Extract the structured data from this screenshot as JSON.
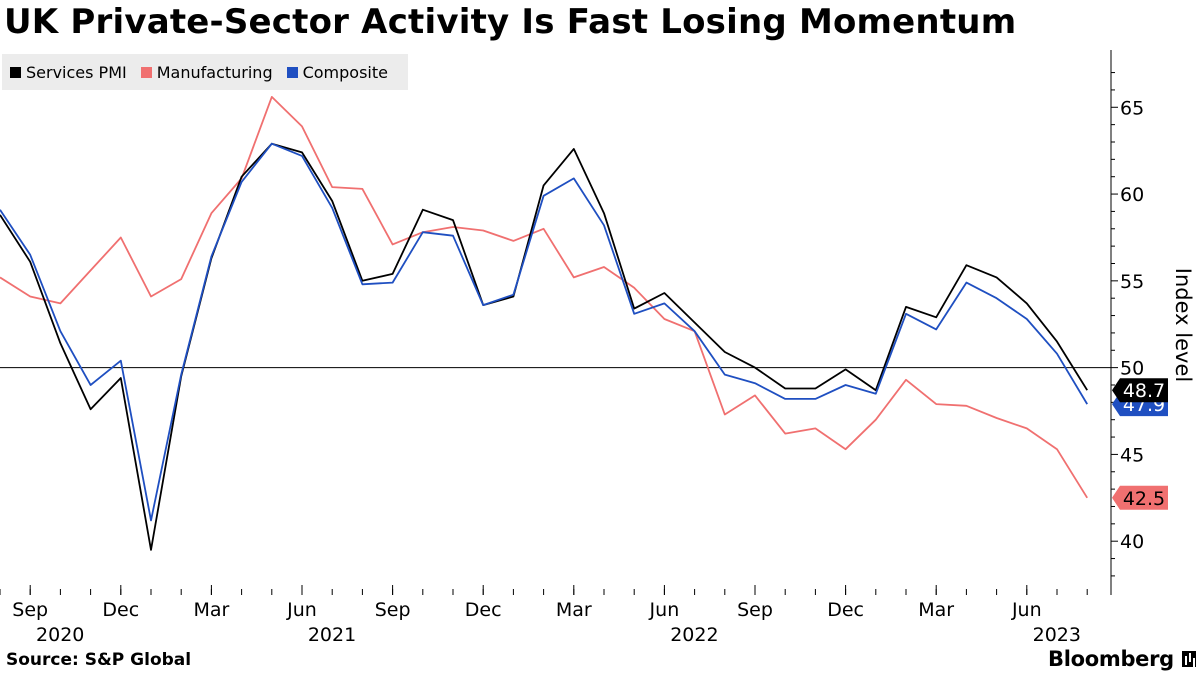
{
  "header": {
    "title": "UK Private-Sector Activity Is Fast Losing Momentum"
  },
  "footer": {
    "source": "Source: S&P Global",
    "brand": "Bloomberg"
  },
  "chart_data": {
    "type": "line",
    "title": "UK Private-Sector Activity Is Fast Losing Momentum",
    "ylabel": "Index level",
    "xlabel": "",
    "ylim": [
      36.9,
      68.3
    ],
    "yticks": [
      40,
      45,
      50,
      55,
      60,
      65
    ],
    "reference_line": 50,
    "grid": false,
    "legend_position": "top-left",
    "x": [
      "2020-08",
      "2020-09",
      "2020-10",
      "2020-11",
      "2020-12",
      "2021-01",
      "2021-02",
      "2021-03",
      "2021-04",
      "2021-05",
      "2021-06",
      "2021-07",
      "2021-08",
      "2021-09",
      "2021-10",
      "2021-11",
      "2021-12",
      "2022-01",
      "2022-02",
      "2022-03",
      "2022-04",
      "2022-05",
      "2022-06",
      "2022-07",
      "2022-08",
      "2022-09",
      "2022-10",
      "2022-11",
      "2022-12",
      "2023-01",
      "2023-02",
      "2023-03",
      "2023-04",
      "2023-05",
      "2023-06",
      "2023-07",
      "2023-08"
    ],
    "x_tick_labels": [
      {
        "x": "2020-09",
        "month": "Sep",
        "year": "2020"
      },
      {
        "x": "2020-12",
        "month": "Dec",
        "year": ""
      },
      {
        "x": "2021-03",
        "month": "Mar",
        "year": ""
      },
      {
        "x": "2021-06",
        "month": "Jun",
        "year": "2021"
      },
      {
        "x": "2021-09",
        "month": "Sep",
        "year": ""
      },
      {
        "x": "2021-12",
        "month": "Dec",
        "year": ""
      },
      {
        "x": "2022-03",
        "month": "Mar",
        "year": ""
      },
      {
        "x": "2022-06",
        "month": "Jun",
        "year": "2022"
      },
      {
        "x": "2022-09",
        "month": "Sep",
        "year": ""
      },
      {
        "x": "2022-12",
        "month": "Dec",
        "year": ""
      },
      {
        "x": "2023-03",
        "month": "Mar",
        "year": ""
      },
      {
        "x": "2023-06",
        "month": "Jun",
        "year": "2023"
      }
    ],
    "series": [
      {
        "name": "Manufacturing",
        "color": "#f07070",
        "end_label": "42.5",
        "values": [
          55.2,
          54.1,
          53.7,
          55.6,
          57.5,
          54.1,
          55.1,
          58.9,
          60.9,
          65.6,
          63.9,
          60.4,
          60.3,
          57.1,
          57.8,
          58.1,
          57.9,
          57.3,
          58.0,
          55.2,
          55.8,
          54.6,
          52.8,
          52.1,
          47.3,
          48.4,
          46.2,
          46.5,
          45.3,
          47.0,
          49.3,
          47.9,
          47.8,
          47.1,
          46.5,
          45.3,
          42.5
        ]
      },
      {
        "name": "Services PMI",
        "color": "#000000",
        "end_label": "48.7",
        "values": [
          58.8,
          56.1,
          51.4,
          47.6,
          49.4,
          39.5,
          49.5,
          56.3,
          61.0,
          62.9,
          62.4,
          59.6,
          55.0,
          55.4,
          59.1,
          58.5,
          53.6,
          54.1,
          60.5,
          62.6,
          58.9,
          53.4,
          54.3,
          52.6,
          50.9,
          50.0,
          48.8,
          48.8,
          49.9,
          48.7,
          53.5,
          52.9,
          55.9,
          55.2,
          53.7,
          51.5,
          48.7
        ]
      },
      {
        "name": "Composite",
        "color": "#1f4fc1",
        "end_label": "47.9",
        "values": [
          59.1,
          56.5,
          52.1,
          49.0,
          50.4,
          41.2,
          49.6,
          56.4,
          60.7,
          62.9,
          62.2,
          59.2,
          54.8,
          54.9,
          57.8,
          57.6,
          53.6,
          54.2,
          59.9,
          60.9,
          58.2,
          53.1,
          53.7,
          52.1,
          49.6,
          49.1,
          48.2,
          48.2,
          49.0,
          48.5,
          53.1,
          52.2,
          54.9,
          54.0,
          52.8,
          50.8,
          47.9
        ]
      }
    ]
  }
}
